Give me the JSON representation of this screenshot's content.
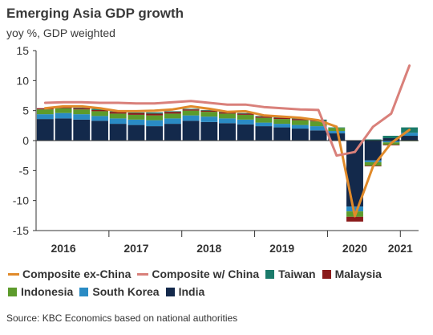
{
  "title": "Emerging Asia GDP growth",
  "subtitle": "yoy %, GDP weighted",
  "source": "Source: KBC Economics based on national authorities",
  "colors": {
    "India": "#13294b",
    "South Korea": "#2a8bc4",
    "Indonesia": "#5d9b2c",
    "Malaysia": "#8a1a1a",
    "Taiwan": "#1a7a6a",
    "Composite ex-China": "#e08a2a",
    "Composite w/ China": "#d9807a"
  },
  "legend": [
    {
      "name": "Composite ex-China",
      "kind": "line"
    },
    {
      "name": "Composite w/ China",
      "kind": "line"
    },
    {
      "name": "Taiwan",
      "kind": "box"
    },
    {
      "name": "Malaysia",
      "kind": "box"
    },
    {
      "name": "Indonesia",
      "kind": "box"
    },
    {
      "name": "South Korea",
      "kind": "box"
    },
    {
      "name": "India",
      "kind": "box"
    }
  ],
  "chart_data": {
    "type": "bar",
    "stacked": true,
    "ylim": [
      -15,
      15
    ],
    "yticks": [
      -15,
      -10,
      -5,
      0,
      5,
      10,
      15
    ],
    "year_labels": [
      {
        "label": "2016",
        "pos": 1.5
      },
      {
        "label": "2017",
        "pos": 5.5
      },
      {
        "label": "2018",
        "pos": 9.5
      },
      {
        "label": "2019",
        "pos": 13.5
      },
      {
        "label": "2020",
        "pos": 17.5
      },
      {
        "label": "2021",
        "pos": 20
      }
    ],
    "categories": [
      "Q1 2016",
      "Q2 2016",
      "Q3 2016",
      "Q4 2016",
      "Q1 2017",
      "Q2 2017",
      "Q3 2017",
      "Q4 2017",
      "Q1 2018",
      "Q2 2018",
      "Q3 2018",
      "Q4 2018",
      "Q1 2019",
      "Q2 2019",
      "Q3 2019",
      "Q4 2019",
      "Q1 2020",
      "Q2 2020",
      "Q3 2020",
      "Q4 2020",
      "Q1 2021"
    ],
    "series": [
      {
        "name": "India",
        "values": [
          3.6,
          3.7,
          3.5,
          3.3,
          2.8,
          2.6,
          2.4,
          2.8,
          3.3,
          3.1,
          2.9,
          2.7,
          2.4,
          2.2,
          2.0,
          1.7,
          1.2,
          -11.0,
          -3.3,
          0.4,
          0.8
        ]
      },
      {
        "name": "South Korea",
        "values": [
          0.8,
          0.9,
          0.9,
          0.8,
          0.9,
          0.9,
          1.0,
          0.9,
          0.9,
          0.9,
          0.8,
          0.8,
          0.6,
          0.6,
          0.6,
          0.7,
          0.4,
          -0.8,
          -0.3,
          -0.3,
          0.5
        ]
      },
      {
        "name": "Indonesia",
        "values": [
          0.8,
          0.8,
          0.8,
          0.8,
          0.8,
          0.8,
          0.8,
          0.8,
          0.8,
          0.8,
          0.8,
          0.8,
          0.8,
          0.8,
          0.8,
          0.8,
          0.5,
          -0.9,
          -0.6,
          -0.4,
          -0.1
        ]
      },
      {
        "name": "Malaysia",
        "values": [
          0.2,
          0.2,
          0.2,
          0.2,
          0.3,
          0.3,
          0.3,
          0.3,
          0.2,
          0.2,
          0.2,
          0.2,
          0.2,
          0.2,
          0.2,
          0.1,
          0.0,
          -0.8,
          -0.1,
          -0.1,
          0.0
        ]
      },
      {
        "name": "Taiwan",
        "values": [
          0.0,
          0.1,
          0.1,
          0.2,
          0.1,
          0.1,
          0.2,
          0.1,
          0.1,
          0.1,
          0.1,
          0.1,
          0.1,
          0.1,
          0.1,
          0.2,
          0.1,
          0.0,
          0.2,
          0.4,
          0.9
        ]
      }
    ],
    "lines": [
      {
        "name": "Composite ex-China",
        "values": [
          5.4,
          5.7,
          5.7,
          5.4,
          4.9,
          4.9,
          5.0,
          5.2,
          5.7,
          5.3,
          4.8,
          4.9,
          4.2,
          4.0,
          3.8,
          3.4,
          2.3,
          -12.6,
          -4.3,
          -0.4,
          1.8
        ]
      },
      {
        "name": "Composite w/ China",
        "values": [
          6.3,
          6.4,
          6.4,
          6.3,
          6.3,
          6.2,
          6.2,
          6.4,
          6.6,
          6.3,
          6.0,
          6.0,
          5.6,
          5.4,
          5.2,
          5.1,
          -2.5,
          -1.9,
          2.3,
          4.5,
          12.5
        ]
      }
    ]
  }
}
